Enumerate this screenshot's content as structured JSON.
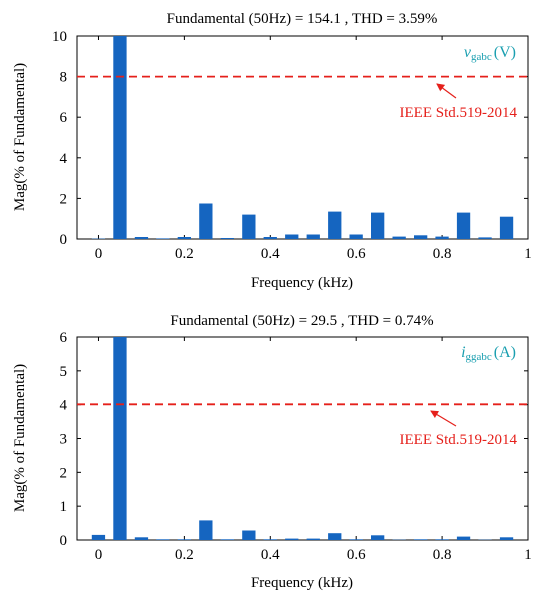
{
  "chart_data": [
    {
      "type": "bar",
      "title": "Fundamental (50Hz) = 154.1 , THD = 3.59%",
      "xlabel": "Frequency (kHz)",
      "ylabel": "Mag(% of Fundamental)",
      "xlim": [
        -0.05,
        1.0
      ],
      "ylim": [
        0,
        10
      ],
      "xticks": [
        "0",
        "0.2",
        "0.4",
        "0.6",
        "0.8",
        "1"
      ],
      "yticks": [
        "0",
        "2",
        "4",
        "6",
        "8",
        "10"
      ],
      "x": [
        0,
        0.05,
        0.1,
        0.15,
        0.2,
        0.25,
        0.3,
        0.35,
        0.4,
        0.45,
        0.5,
        0.55,
        0.6,
        0.65,
        0.7,
        0.75,
        0.8,
        0.85,
        0.9,
        0.95
      ],
      "values": [
        0.02,
        10,
        0.1,
        0.03,
        0.1,
        1.75,
        0.05,
        1.2,
        0.1,
        0.22,
        0.22,
        1.35,
        0.22,
        1.3,
        0.12,
        0.18,
        0.12,
        1.3,
        0.08,
        1.1
      ],
      "bar_color": "#1565c0",
      "limit_line": {
        "value": 8,
        "color": "#e5201b",
        "style": "dashed"
      },
      "limit_label": "IEEE Std.519-2014",
      "signal_symbol": "v",
      "signal_subscript": "gabc",
      "signal_unit": "(V)",
      "signal_color": "#1a9fb0",
      "grid": false
    },
    {
      "type": "bar",
      "title": "Fundamental (50Hz) = 29.5 , THD = 0.74%",
      "xlabel": "Frequency (kHz)",
      "ylabel": "Mag(% of Fundamental)",
      "xlim": [
        -0.05,
        1.0
      ],
      "ylim": [
        0,
        6
      ],
      "xticks": [
        "0",
        "0.2",
        "0.4",
        "0.6",
        "0.8",
        "1"
      ],
      "yticks": [
        "0",
        "1",
        "2",
        "3",
        "4",
        "5",
        "6"
      ],
      "x": [
        0,
        0.05,
        0.1,
        0.15,
        0.2,
        0.25,
        0.3,
        0.35,
        0.4,
        0.45,
        0.5,
        0.55,
        0.6,
        0.65,
        0.7,
        0.75,
        0.8,
        0.85,
        0.9,
        0.95
      ],
      "values": [
        0.15,
        6,
        0.08,
        0.02,
        0.02,
        0.58,
        0.02,
        0.28,
        0.02,
        0.04,
        0.04,
        0.2,
        0.02,
        0.14,
        0.01,
        0.02,
        0.02,
        0.1,
        0.01,
        0.08
      ],
      "bar_color": "#1565c0",
      "limit_line": {
        "value": 4,
        "color": "#e5201b",
        "style": "dashed"
      },
      "limit_label": "IEEE Std.519-2014",
      "signal_symbol": "i",
      "signal_subscript": "ggabc",
      "signal_unit": "(A)",
      "signal_color": "#1a9fb0",
      "grid": false
    }
  ]
}
